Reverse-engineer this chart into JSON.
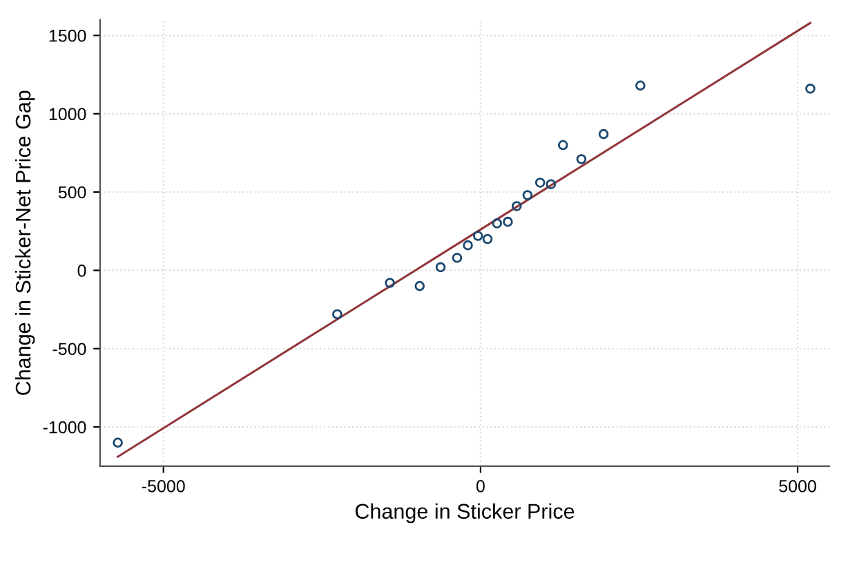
{
  "chart_data": {
    "type": "scatter",
    "xlabel": "Change in Sticker Price",
    "ylabel": "Change in Sticker-Net Price Gap",
    "xlim": [
      -6000,
      5500
    ],
    "ylim": [
      -1250,
      1600
    ],
    "xticks": [
      -5000,
      0,
      5000
    ],
    "yticks": [
      -1000,
      -500,
      0,
      500,
      1000,
      1500
    ],
    "grid": true,
    "series": [
      {
        "marker": "circle",
        "color": "#1a476f",
        "x": [
          -5720,
          -2260,
          -1430,
          -960,
          -630,
          -370,
          -200,
          -40,
          110,
          260,
          430,
          570,
          740,
          940,
          1110,
          1300,
          1590,
          1940,
          2520,
          5200
        ],
        "values": [
          -1100,
          -280,
          -80,
          -100,
          20,
          80,
          160,
          220,
          200,
          300,
          310,
          410,
          480,
          560,
          550,
          800,
          710,
          870,
          1180,
          1160
        ]
      },
      {
        "type": "line",
        "color": "#90353b",
        "x": [
          -5720,
          5200
        ],
        "values": [
          -1190,
          1580
        ]
      }
    ]
  }
}
